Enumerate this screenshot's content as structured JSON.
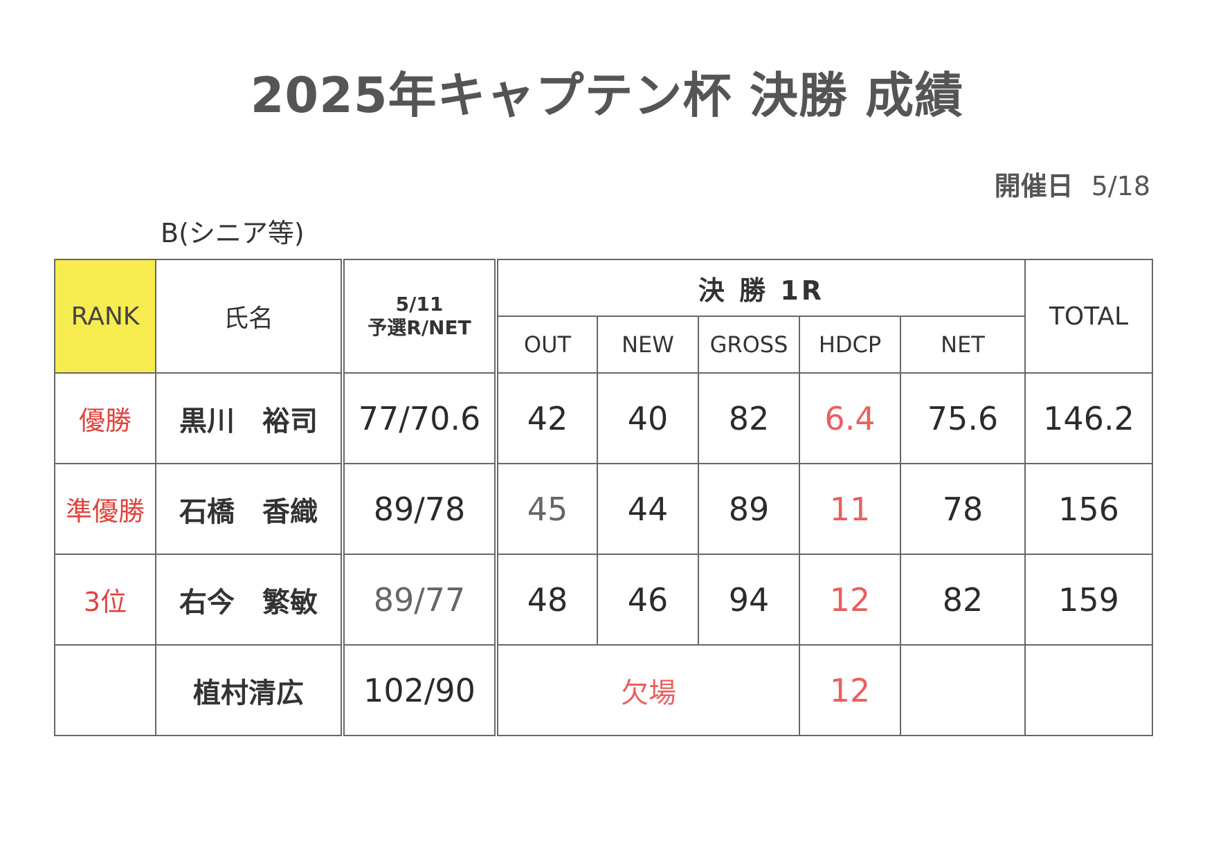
{
  "document": {
    "title": "2025年キャプテン杯 決勝 成績",
    "date_label": "開催日",
    "date_value": "5/18",
    "section": "B(シニア等)"
  },
  "table": {
    "headers": {
      "rank": "RANK",
      "name": "氏名",
      "prelim_date": "5/11",
      "prelim_label": "予選R/NET",
      "final_group": "決 勝 1R",
      "out": "OUT",
      "new": "NEW",
      "gross": "GROSS",
      "hdcp": "HDCP",
      "net": "NET",
      "total": "TOTAL"
    },
    "rows": [
      {
        "rank": "優勝",
        "name": "黒川　裕司",
        "prelim": "77/70.6",
        "out": "42",
        "new": "40",
        "gross": "82",
        "hdcp": "6.4",
        "net": "75.6",
        "total": "146.2"
      },
      {
        "rank": "準優勝",
        "name": "石橋　香織",
        "prelim": "89/78",
        "out": "45",
        "new": "44",
        "gross": "89",
        "hdcp": "11",
        "net": "78",
        "total": "156"
      },
      {
        "rank": "3位",
        "name": "右今　繁敏",
        "prelim": "89/77",
        "out": "48",
        "new": "46",
        "gross": "94",
        "hdcp": "12",
        "net": "82",
        "total": "159"
      },
      {
        "rank": "",
        "name": "植村清広",
        "prelim": "102/90",
        "absent": "欠場",
        "hdcp": "12",
        "net": "",
        "total": ""
      }
    ]
  },
  "colors": {
    "rank_header_bg": "#f7ec4f",
    "highlight_red": "#e0433c"
  }
}
